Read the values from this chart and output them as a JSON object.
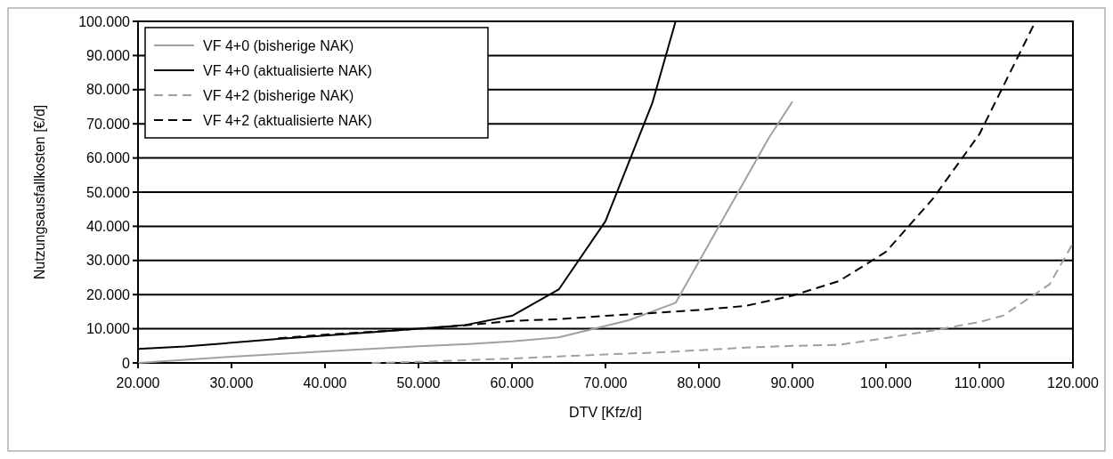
{
  "chart_data": {
    "type": "line",
    "xlabel": "DTV [Kfz/d]",
    "ylabel": "Nutzungsausfallkosten [€/d]",
    "xlim": [
      20000,
      120000
    ],
    "ylim": [
      0,
      100000
    ],
    "xticks": [
      {
        "value": 20000,
        "label": "20.000"
      },
      {
        "value": 30000,
        "label": "30.000"
      },
      {
        "value": 40000,
        "label": "40.000"
      },
      {
        "value": 50000,
        "label": "50.000"
      },
      {
        "value": 60000,
        "label": "60.000"
      },
      {
        "value": 70000,
        "label": "70.000"
      },
      {
        "value": 80000,
        "label": "80.000"
      },
      {
        "value": 90000,
        "label": "90.000"
      },
      {
        "value": 100000,
        "label": "100.000"
      },
      {
        "value": 110000,
        "label": "110.000"
      },
      {
        "value": 120000,
        "label": "120.000"
      }
    ],
    "yticks": [
      0,
      {
        "value": 10000,
        "label": "10.000"
      },
      {
        "value": 20000,
        "label": "20.000"
      },
      {
        "value": 30000,
        "label": "30.000"
      },
      {
        "value": 40000,
        "label": "40.000"
      },
      {
        "value": 50000,
        "label": "50.000"
      },
      {
        "value": 60000,
        "label": "60.000"
      },
      {
        "value": 70000,
        "label": "70.000"
      },
      {
        "value": 80000,
        "label": "80.000"
      },
      {
        "value": 90000,
        "label": "90.000"
      },
      {
        "value": 100000,
        "label": "100.000"
      }
    ],
    "grid": "y",
    "legend": "top left",
    "marker": "none",
    "series": [
      {
        "name": "VF 4+0 (bisherige NAK)",
        "color": "#a0a0a0",
        "line_style": "solid",
        "x": [
          20000,
          30000,
          40000,
          50000,
          55000,
          60000,
          65000,
          72500,
          77500,
          87500,
          90000
        ],
        "values": [
          0,
          1800,
          3400,
          4900,
          5500,
          6300,
          7500,
          12500,
          17600,
          66000,
          76500
        ]
      },
      {
        "name": "VF 4+0 (aktualisierte NAK)",
        "color": "#000000",
        "line_style": "solid",
        "x": [
          20000,
          25000,
          30000,
          35000,
          40000,
          45000,
          50000,
          55000,
          60000,
          65000,
          70000,
          75000,
          77500
        ],
        "values": [
          4100,
          4800,
          5900,
          7000,
          8000,
          9000,
          10000,
          11100,
          13800,
          21500,
          41500,
          76000,
          100000
        ]
      },
      {
        "name": "VF 4+2 (bisherige NAK)",
        "color": "#a0a0a0",
        "line_style": "dashed",
        "x": [
          45000,
          50000,
          55000,
          60000,
          65000,
          70000,
          75000,
          80000,
          85000,
          90000,
          95000,
          100000,
          105000,
          110000,
          112500,
          117500,
          120000
        ],
        "values": [
          0,
          300,
          800,
          1300,
          1900,
          2500,
          3000,
          3700,
          4500,
          5000,
          5300,
          7300,
          9500,
          12000,
          13800,
          23000,
          35000
        ]
      },
      {
        "name": "VF 4+2 (aktualisierte NAK)",
        "color": "#000000",
        "line_style": "dashed",
        "x": [
          35000,
          40000,
          45000,
          50000,
          55000,
          60000,
          65000,
          70000,
          75000,
          80000,
          85000,
          90000,
          95000,
          100000,
          105000,
          110000,
          116000
        ],
        "values": [
          7200,
          8300,
          9100,
          10000,
          11000,
          12300,
          12800,
          13800,
          14600,
          15500,
          16700,
          19700,
          24000,
          32500,
          48000,
          67000,
          100000
        ]
      }
    ]
  }
}
